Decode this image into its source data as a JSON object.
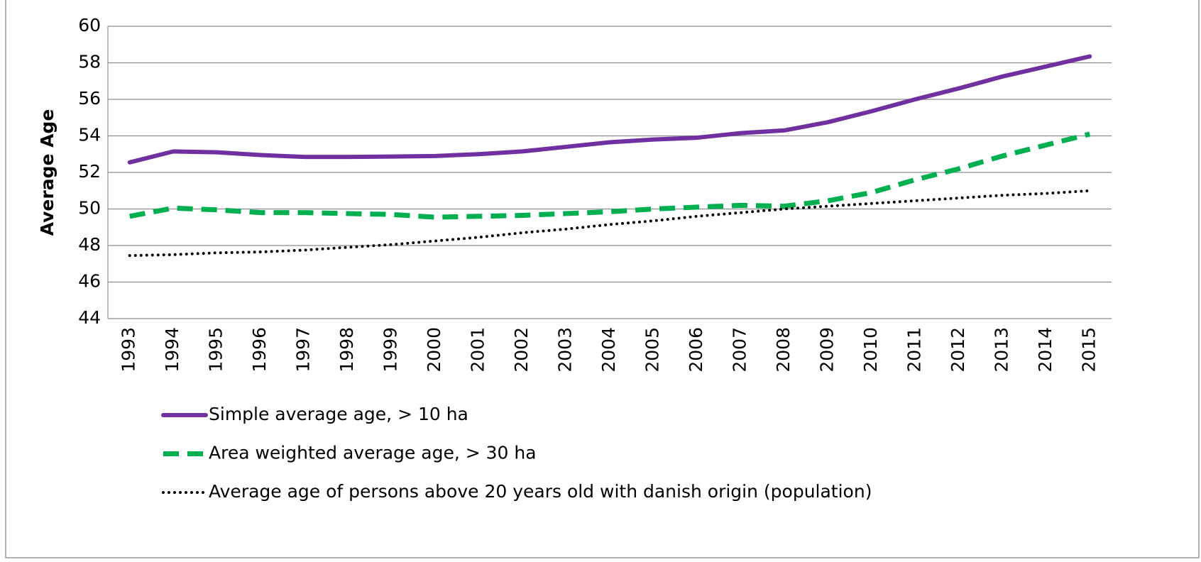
{
  "chart_data": {
    "type": "line",
    "y_label": "Average Age",
    "categories": [
      "1993",
      "1994",
      "1995",
      "1996",
      "1997",
      "1998",
      "1999",
      "2000",
      "2001",
      "2002",
      "2003",
      "2004",
      "2005",
      "2006",
      "2007",
      "2008",
      "2009",
      "2010",
      "2011",
      "2012",
      "2013",
      "2014",
      "2015"
    ],
    "series": [
      {
        "name": "Simple average age, > 10 ha",
        "color": "#7030a0",
        "style": "solid",
        "values": [
          52.55,
          53.15,
          53.1,
          52.95,
          52.85,
          52.85,
          52.87,
          52.9,
          53.0,
          53.15,
          53.4,
          53.65,
          53.8,
          53.9,
          54.15,
          54.3,
          54.75,
          55.35,
          56.0,
          56.6,
          57.25,
          57.8,
          58.35
        ]
      },
      {
        "name": "Area weighted average age, > 30 ha",
        "color": "#00b050",
        "style": "dashed",
        "values": [
          49.6,
          50.05,
          49.95,
          49.8,
          49.8,
          49.75,
          49.7,
          49.55,
          49.6,
          49.65,
          49.75,
          49.85,
          50.0,
          50.1,
          50.2,
          50.15,
          50.45,
          50.9,
          51.6,
          52.2,
          52.9,
          53.5,
          54.1
        ]
      },
      {
        "name": "Average age of persons above 20 years old with danish origin (population)",
        "color": "#000000",
        "style": "dotted",
        "values": [
          47.45,
          47.5,
          47.6,
          47.65,
          47.75,
          47.9,
          48.05,
          48.25,
          48.45,
          48.7,
          48.9,
          49.15,
          49.35,
          49.6,
          49.8,
          50.0,
          50.15,
          50.3,
          50.45,
          50.6,
          50.75,
          50.85,
          51.0
        ]
      }
    ],
    "ylim": [
      44,
      60
    ],
    "yticks": [
      44,
      46,
      48,
      50,
      52,
      54,
      56,
      58,
      60
    ],
    "grid": true
  }
}
